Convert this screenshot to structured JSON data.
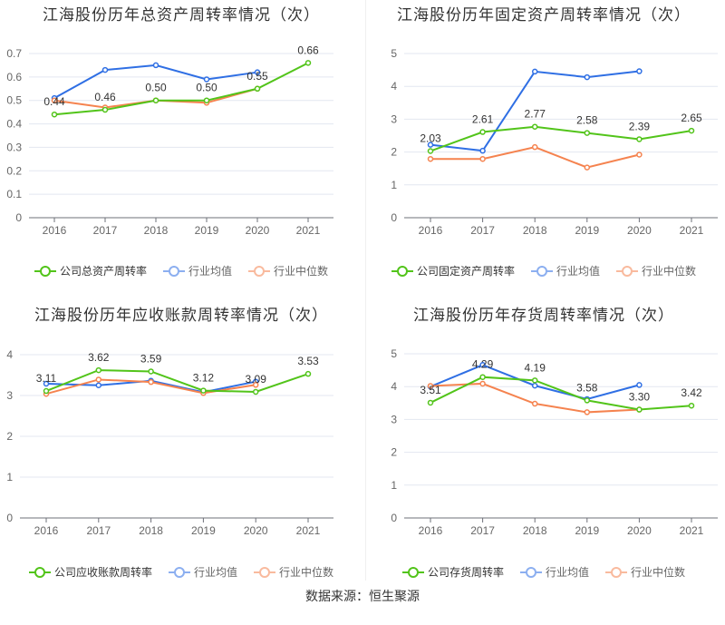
{
  "colors": {
    "company": "#52c41a",
    "average": "#2f6fe4",
    "median": "#f5834f"
  },
  "chart_data": [
    {
      "type": "line",
      "title": "江海股份历年总资产周转率情况（次）",
      "categories": [
        "2016",
        "2017",
        "2018",
        "2019",
        "2020",
        "2021"
      ],
      "ylim": [
        0,
        0.7
      ],
      "yticks": [
        "0",
        "0.1",
        "0.2",
        "0.3",
        "0.4",
        "0.5",
        "0.6",
        "0.7"
      ],
      "grid": true,
      "legend": "bottom",
      "series": [
        {
          "name": "公司总资产周转率",
          "values": [
            0.44,
            0.46,
            0.5,
            0.5,
            0.55,
            0.66
          ],
          "labels": [
            "0.44",
            "0.46",
            "0.50",
            "0.50",
            "0.55",
            "0.66"
          ]
        },
        {
          "name": "行业均值",
          "values": [
            0.51,
            0.63,
            0.65,
            0.59,
            0.62,
            null
          ]
        },
        {
          "name": "行业中位数",
          "values": [
            0.5,
            0.47,
            0.5,
            0.49,
            0.55,
            null
          ]
        }
      ]
    },
    {
      "type": "line",
      "title": "江海股份历年固定资产周转率情况（次）",
      "categories": [
        "2016",
        "2017",
        "2018",
        "2019",
        "2020",
        "2021"
      ],
      "ylim": [
        0,
        5
      ],
      "yticks": [
        "0",
        "1",
        "2",
        "3",
        "4",
        "5"
      ],
      "grid": true,
      "legend": "bottom",
      "series": [
        {
          "name": "公司固定资产周转率",
          "values": [
            2.03,
            2.61,
            2.77,
            2.58,
            2.39,
            2.65
          ],
          "labels": [
            "2.03",
            "2.61",
            "2.77",
            "2.58",
            "2.39",
            "2.65"
          ]
        },
        {
          "name": "行业均值",
          "values": [
            2.22,
            2.04,
            4.45,
            4.28,
            4.46,
            null
          ]
        },
        {
          "name": "行业中位数",
          "values": [
            1.79,
            1.79,
            2.15,
            1.53,
            1.92,
            null
          ]
        }
      ]
    },
    {
      "type": "line",
      "title": "江海股份历年应收账款周转率情况（次）",
      "categories": [
        "2016",
        "2017",
        "2018",
        "2019",
        "2020",
        "2021"
      ],
      "ylim": [
        0,
        4
      ],
      "yticks": [
        "0",
        "1",
        "2",
        "3",
        "4"
      ],
      "grid": true,
      "legend": "bottom",
      "series": [
        {
          "name": "公司应收账款周转率",
          "values": [
            3.11,
            3.62,
            3.59,
            3.12,
            3.09,
            3.53
          ],
          "labels": [
            "3.11",
            "3.62",
            "3.59",
            "3.12",
            "3.09",
            "3.53"
          ]
        },
        {
          "name": "行业均值",
          "values": [
            3.29,
            3.25,
            3.36,
            3.08,
            3.34,
            null
          ]
        },
        {
          "name": "行业中位数",
          "values": [
            3.04,
            3.39,
            3.33,
            3.06,
            3.26,
            null
          ]
        }
      ]
    },
    {
      "type": "line",
      "title": "江海股份历年存货周转率情况（次）",
      "categories": [
        "2016",
        "2017",
        "2018",
        "2019",
        "2020",
        "2021"
      ],
      "ylim": [
        0,
        5
      ],
      "yticks": [
        "0",
        "1",
        "2",
        "3",
        "4",
        "5"
      ],
      "grid": true,
      "legend": "bottom",
      "series": [
        {
          "name": "公司存货周转率",
          "values": [
            3.51,
            4.29,
            4.19,
            3.58,
            3.3,
            3.42
          ],
          "labels": [
            "3.51",
            "4.29",
            "4.19",
            "3.58",
            "3.30",
            "3.42"
          ]
        },
        {
          "name": "行业均值",
          "values": [
            4.0,
            4.66,
            4.03,
            3.62,
            4.05,
            null
          ]
        },
        {
          "name": "行业中位数",
          "values": [
            4.02,
            4.09,
            3.48,
            3.22,
            3.3,
            null
          ]
        }
      ]
    }
  ],
  "source": "数据来源：恒生聚源"
}
